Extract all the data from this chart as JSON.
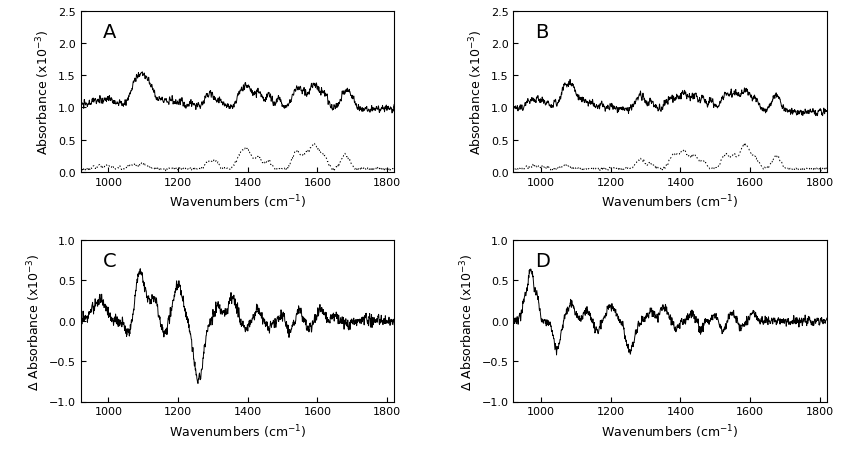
{
  "xlim": [
    920,
    1820
  ],
  "xticks": [
    1000,
    1200,
    1400,
    1600,
    1800
  ],
  "xlabel": "Wavenumbers (cm$^{-1}$)",
  "panels": [
    "A",
    "B",
    "C",
    "D"
  ],
  "ab_ylabel": "Absorbance (x10$^{-3}$)",
  "cd_ylabel": "$\\Delta$ Absorbance (x10$^{-3}$)",
  "ab_ylim": [
    0.0,
    2.5
  ],
  "ab_yticks": [
    0.0,
    0.5,
    1.0,
    1.5,
    2.0,
    2.5
  ],
  "cd_ylim": [
    -1.0,
    1.0
  ],
  "cd_yticks": [
    -1.0,
    -0.5,
    0.0,
    0.5,
    1.0
  ],
  "line_color": "#000000",
  "background_color": "#ffffff",
  "label_fontsize": 9,
  "tick_fontsize": 8,
  "panel_label_fontsize": 14
}
